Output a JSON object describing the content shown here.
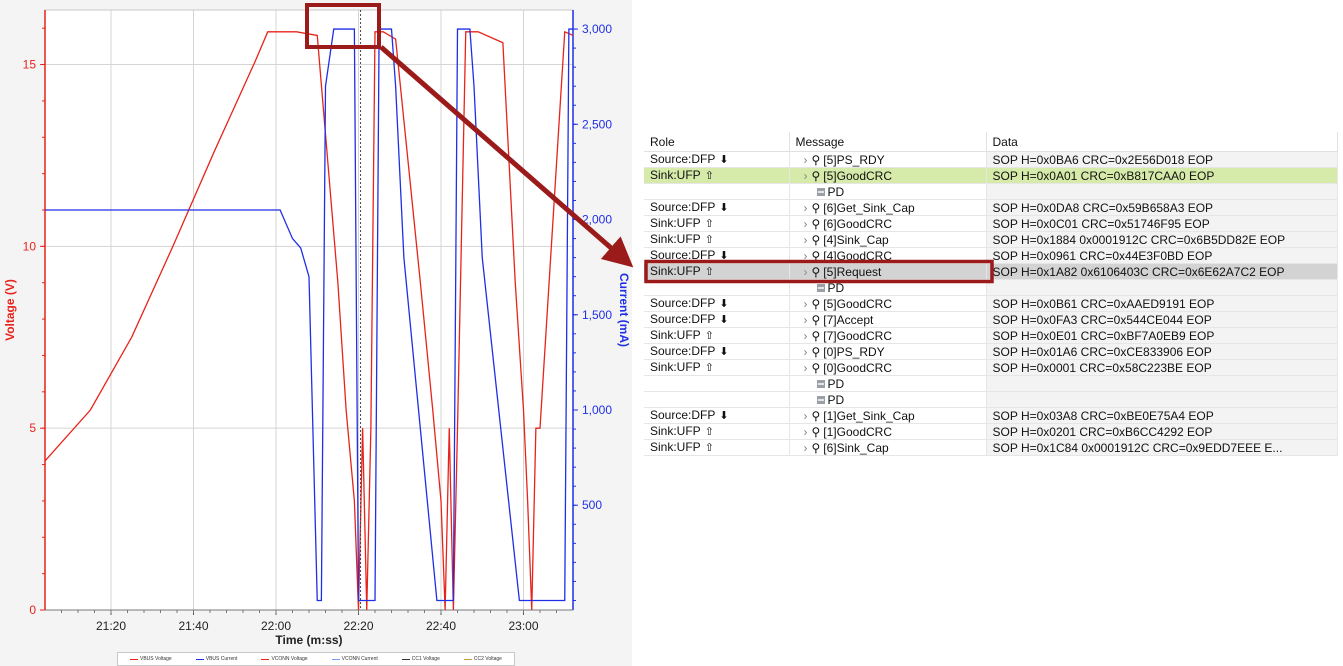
{
  "chart_data": {
    "type": "line",
    "xlabel": "Time (m:ss)",
    "ylabel_left": "Voltage (V)",
    "ylabel_right": "Current (mA)",
    "x_ticks": [
      "21:20",
      "21:40",
      "22:00",
      "22:20",
      "22:40",
      "23:00"
    ],
    "x_tick_seconds": [
      1280,
      1300,
      1320,
      1340,
      1360,
      1380
    ],
    "xlim_seconds": [
      1264,
      1392
    ],
    "ylim_left": [
      0,
      16.5
    ],
    "y_ticks_left": [
      "0",
      "5",
      "10",
      "15"
    ],
    "ylim_right": [
      -50,
      3100
    ],
    "y_ticks_right": [
      "500",
      "1,000",
      "1,500",
      "2,000",
      "2,500",
      "3,000"
    ],
    "grid": true,
    "legend_position": "bottom",
    "series": [
      {
        "name": "VBUS Voltage",
        "color": "#e8231a",
        "x": [
          1264,
          1275,
          1285,
          1295,
          1305,
          1315,
          1318,
          1325,
          1330,
          1335,
          1337,
          1339,
          1340,
          1341,
          1342,
          1343,
          1344,
          1346,
          1349,
          1355,
          1358,
          1360,
          1361,
          1362,
          1363,
          1364,
          1366,
          1369,
          1375,
          1378,
          1380,
          1381,
          1382,
          1383,
          1384,
          1390,
          1392
        ],
        "values": [
          4.1,
          5.5,
          7.5,
          10.0,
          12.6,
          15.1,
          15.9,
          15.9,
          15.8,
          9.0,
          5.5,
          3.0,
          0.0,
          5.0,
          0.0,
          5.0,
          15.9,
          15.9,
          15.7,
          9.0,
          5.5,
          3.0,
          0.0,
          5.0,
          0.0,
          5.0,
          15.9,
          15.9,
          15.6,
          9.0,
          5.5,
          3.0,
          0.0,
          5.0,
          5.0,
          15.9,
          15.8
        ]
      },
      {
        "name": "VBUS Current",
        "color": "#1f2fe6",
        "x": [
          1264,
          1318,
          1321,
          1324,
          1326,
          1328,
          1330,
          1331,
          1332,
          1334,
          1339,
          1340,
          1341,
          1344,
          1345,
          1346,
          1348,
          1349,
          1351,
          1359,
          1361,
          1363,
          1364,
          1365,
          1367,
          1368,
          1370,
          1379,
          1381,
          1382,
          1384,
          1385,
          1386,
          1388,
          1390,
          1391,
          1392
        ],
        "values": [
          2050,
          2050,
          2050,
          1900,
          1850,
          1700,
          0,
          0,
          2700,
          3000,
          3000,
          0,
          0,
          0,
          3000,
          3000,
          3000,
          2700,
          1800,
          0,
          0,
          0,
          3000,
          3000,
          3000,
          2700,
          1800,
          0,
          0,
          0,
          0,
          0,
          0,
          0,
          0,
          3000,
          3000
        ]
      },
      {
        "name": "VCONN Voltage",
        "color": "#e8231a"
      },
      {
        "name": "VCONN Current",
        "color": "#6aa0ff"
      },
      {
        "name": "CC1 Voltage",
        "color": "#333333"
      },
      {
        "name": "CC2 Voltage",
        "color": "#c89a3c"
      }
    ]
  },
  "table": {
    "columns": [
      "Role",
      "Message",
      "Data"
    ],
    "rows": [
      {
        "role": "Source:DFP",
        "dir": "⬇",
        "msg": "[5]PS_RDY",
        "data": "SOP H=0x0BA6 CRC=0x2E56D018 EOP",
        "hl": ""
      },
      {
        "role": "Sink:UFP",
        "dir": "⇧",
        "msg": "[5]GoodCRC",
        "data": "SOP H=0x0A01 CRC=0xB817CAA0 EOP",
        "hl": "green"
      },
      {
        "role": "",
        "dir": "",
        "msg": "PD",
        "data": "",
        "hl": "",
        "pd": true
      },
      {
        "role": "Source:DFP",
        "dir": "⬇",
        "msg": "[6]Get_Sink_Cap",
        "data": "SOP H=0x0DA8 CRC=0x59B658A3 EOP",
        "hl": ""
      },
      {
        "role": "Sink:UFP",
        "dir": "⇧",
        "msg": "[6]GoodCRC",
        "data": "SOP H=0x0C01 CRC=0x51746F95 EOP",
        "hl": ""
      },
      {
        "role": "Sink:UFP",
        "dir": "⇧",
        "msg": "[4]Sink_Cap",
        "data": "SOP H=0x1884 0x0001912C CRC=0x6B5DD82E EOP",
        "hl": ""
      },
      {
        "role": "Source:DFP",
        "dir": "⬇",
        "msg": "[4]GoodCRC",
        "data": "SOP H=0x0961 CRC=0x44E3F0BD EOP",
        "hl": ""
      },
      {
        "role": "Sink:UFP",
        "dir": "⇧",
        "msg": "[5]Request",
        "data": "SOP H=0x1A82 0x6106403C CRC=0x6E62A7C2 EOP",
        "hl": "gray"
      },
      {
        "role": "",
        "dir": "",
        "msg": "PD",
        "data": "",
        "hl": "",
        "pd": true
      },
      {
        "role": "Source:DFP",
        "dir": "⬇",
        "msg": "[5]GoodCRC",
        "data": "SOP H=0x0B61 CRC=0xAAED9191 EOP",
        "hl": ""
      },
      {
        "role": "Source:DFP",
        "dir": "⬇",
        "msg": "[7]Accept",
        "data": "SOP H=0x0FA3 CRC=0x544CE044 EOP",
        "hl": ""
      },
      {
        "role": "Sink:UFP",
        "dir": "⇧",
        "msg": "[7]GoodCRC",
        "data": "SOP H=0x0E01 CRC=0xBF7A0EB9 EOP",
        "hl": ""
      },
      {
        "role": "Source:DFP",
        "dir": "⬇",
        "msg": "[0]PS_RDY",
        "data": "SOP H=0x01A6 CRC=0xCE833906 EOP",
        "hl": ""
      },
      {
        "role": "Sink:UFP",
        "dir": "⇧",
        "msg": "[0]GoodCRC",
        "data": "SOP H=0x0001 CRC=0x58C223BE EOP",
        "hl": ""
      },
      {
        "role": "",
        "dir": "",
        "msg": "PD",
        "data": "",
        "hl": "",
        "pd": true
      },
      {
        "role": "",
        "dir": "",
        "msg": "PD",
        "data": "",
        "hl": "",
        "pd": true
      },
      {
        "role": "Source:DFP",
        "dir": "⬇",
        "msg": "[1]Get_Sink_Cap",
        "data": "SOP H=0x03A8 CRC=0xBE0E75A4 EOP",
        "hl": ""
      },
      {
        "role": "Sink:UFP",
        "dir": "⇧",
        "msg": "[1]GoodCRC",
        "data": "SOP H=0x0201 CRC=0xB6CC4292 EOP",
        "hl": ""
      },
      {
        "role": "Sink:UFP",
        "dir": "⇧",
        "msg": "[6]Sink_Cap",
        "data": "SOP H=0x1C84 0x0001912C CRC=0x9EDD7EEE E...",
        "hl": ""
      }
    ]
  },
  "annotation": {
    "highlight_color": "#9b1b1b"
  }
}
